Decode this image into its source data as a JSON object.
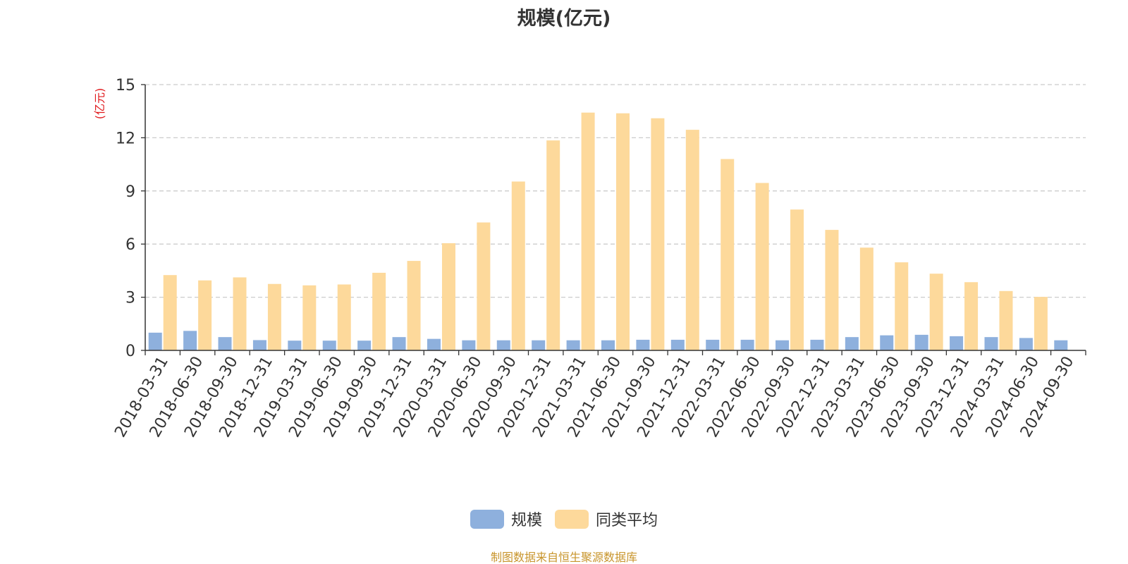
{
  "chart_data": {
    "type": "bar",
    "title": "规模(亿元)",
    "ylabel": "(亿元)",
    "xlabel": "",
    "ylim": [
      0,
      15
    ],
    "yticks": [
      "0",
      "3",
      "6",
      "9",
      "12",
      "15"
    ],
    "grid": true,
    "legend_position": "bottom",
    "categories": [
      "2018-03-31",
      "2018-06-30",
      "2018-09-30",
      "2018-12-31",
      "2019-03-31",
      "2019-06-30",
      "2019-09-30",
      "2019-12-31",
      "2020-03-31",
      "2020-06-30",
      "2020-09-30",
      "2020-12-31",
      "2021-03-31",
      "2021-06-30",
      "2021-09-30",
      "2021-12-31",
      "2022-03-31",
      "2022-06-30",
      "2022-09-30",
      "2022-12-31",
      "2023-03-31",
      "2023-06-30",
      "2023-09-30",
      "2023-12-31",
      "2024-03-31",
      "2024-06-30",
      "2024-09-30"
    ],
    "series": [
      {
        "name": "规模",
        "color": "#8eb0dd",
        "values": [
          1.0,
          1.1,
          0.75,
          0.58,
          0.55,
          0.55,
          0.55,
          0.75,
          0.65,
          0.57,
          0.57,
          0.57,
          0.57,
          0.57,
          0.6,
          0.6,
          0.6,
          0.6,
          0.57,
          0.6,
          0.75,
          0.85,
          0.88,
          0.8,
          0.75,
          0.7,
          0.57
        ]
      },
      {
        "name": "同类平均",
        "color": "#fdd99b",
        "values": [
          4.25,
          3.95,
          4.12,
          3.75,
          3.67,
          3.72,
          4.38,
          5.05,
          6.05,
          7.22,
          9.53,
          11.85,
          13.42,
          13.38,
          13.1,
          12.45,
          10.8,
          9.45,
          7.95,
          6.8,
          5.8,
          4.97,
          4.33,
          3.85,
          3.35,
          3.02,
          null
        ]
      }
    ]
  },
  "source_note": "制图数据来自恒生聚源数据库"
}
